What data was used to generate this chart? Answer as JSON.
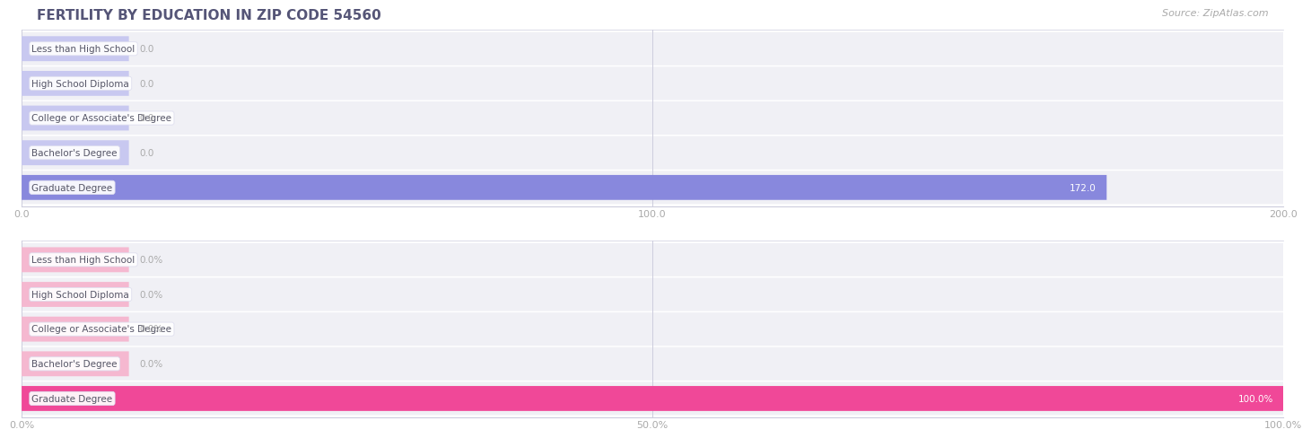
{
  "title": "FERTILITY BY EDUCATION IN ZIP CODE 54560",
  "source": "Source: ZipAtlas.com",
  "categories": [
    "Less than High School",
    "High School Diploma",
    "College or Associate's Degree",
    "Bachelor's Degree",
    "Graduate Degree"
  ],
  "values_abs": [
    0.0,
    0.0,
    0.0,
    0.0,
    172.0
  ],
  "values_pct": [
    0.0,
    0.0,
    0.0,
    0.0,
    100.0
  ],
  "abs_xlim": [
    0,
    200.0
  ],
  "abs_xticks": [
    0.0,
    100.0,
    200.0
  ],
  "pct_xlim": [
    0,
    100.0
  ],
  "pct_xticks": [
    0.0,
    50.0,
    100.0
  ],
  "bar_color_zero_blue": "#c8c8f0",
  "bar_color_full_blue": "#8888dd",
  "bar_color_zero_pink": "#f5b8d0",
  "bar_color_full_pink": "#f04898",
  "row_bg_color": "#f0f0f5",
  "row_gap_color": "#ffffff",
  "title_color": "#555577",
  "source_color": "#aaaaaa",
  "axis_line_color": "#ccccdd",
  "tick_color": "#aaaaaa",
  "value_color_inside": "#ffffff",
  "value_color_outside": "#aaaaaa",
  "label_text_color": "#555566",
  "title_fontsize": 11,
  "source_fontsize": 8,
  "label_fontsize": 7.5,
  "value_fontsize": 7.5,
  "tick_fontsize": 8
}
